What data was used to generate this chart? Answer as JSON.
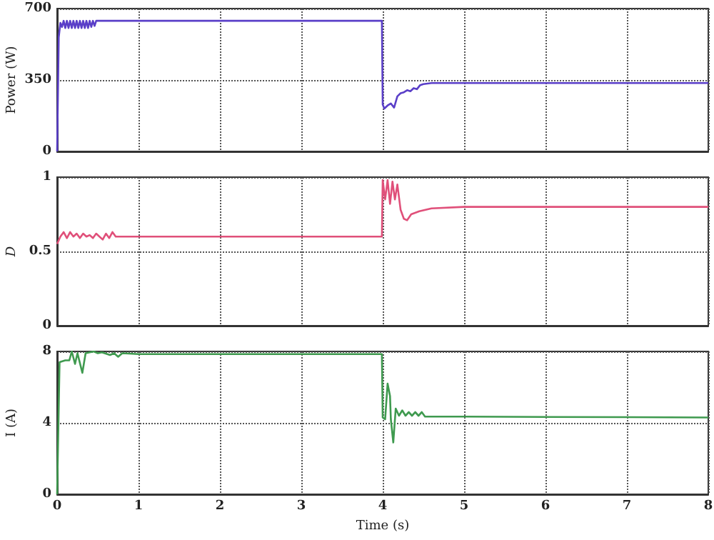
{
  "chart_data": [
    {
      "type": "line",
      "ylabel": "Power (W)",
      "xlim": [
        0,
        8
      ],
      "xticks": [
        0,
        1,
        2,
        3,
        4,
        5,
        6,
        7,
        8
      ],
      "ylim": [
        0,
        700
      ],
      "yticks": [
        0,
        350,
        700
      ],
      "grid": true,
      "tick_labels": "y",
      "series": [
        {
          "color": "#5a3fc8",
          "x": [
            0,
            0.02,
            0.04,
            0.06,
            0.08,
            0.1,
            0.12,
            0.14,
            0.16,
            0.18,
            0.2,
            0.22,
            0.24,
            0.26,
            0.28,
            0.3,
            0.32,
            0.34,
            0.36,
            0.38,
            0.4,
            0.42,
            0.44,
            0.46,
            0.48,
            0.5,
            1,
            2,
            3,
            3.99,
            4.0,
            4.02,
            4.06,
            4.1,
            4.14,
            4.18,
            4.22,
            4.26,
            4.3,
            4.34,
            4.38,
            4.42,
            4.46,
            4.5,
            4.6,
            5,
            6,
            7,
            8
          ],
          "values": [
            0,
            560,
            630,
            610,
            640,
            605,
            640,
            605,
            640,
            605,
            640,
            605,
            640,
            605,
            640,
            605,
            640,
            605,
            640,
            605,
            640,
            610,
            640,
            615,
            640,
            640,
            640,
            640,
            640,
            640,
            230,
            210,
            225,
            235,
            215,
            270,
            285,
            290,
            300,
            295,
            310,
            305,
            325,
            330,
            335,
            335,
            335,
            335,
            335
          ]
        }
      ]
    },
    {
      "type": "line",
      "ylabel": "D",
      "xlim": [
        0,
        8
      ],
      "xticks": [
        0,
        1,
        2,
        3,
        4,
        5,
        6,
        7,
        8
      ],
      "ylim": [
        0,
        1
      ],
      "yticks": [
        0,
        0.5,
        1
      ],
      "grid": true,
      "tick_labels": "y",
      "series": [
        {
          "color": "#e0507a",
          "x": [
            0,
            0.04,
            0.08,
            0.12,
            0.16,
            0.2,
            0.24,
            0.28,
            0.32,
            0.36,
            0.4,
            0.44,
            0.48,
            0.52,
            0.56,
            0.6,
            0.64,
            0.68,
            0.72,
            1,
            2,
            3,
            3.99,
            4.0,
            4.03,
            4.06,
            4.09,
            4.12,
            4.15,
            4.18,
            4.22,
            4.26,
            4.3,
            4.35,
            4.45,
            4.6,
            5,
            6,
            7,
            8
          ],
          "values": [
            0.55,
            0.6,
            0.63,
            0.59,
            0.63,
            0.6,
            0.62,
            0.59,
            0.62,
            0.6,
            0.61,
            0.59,
            0.62,
            0.6,
            0.58,
            0.62,
            0.59,
            0.63,
            0.6,
            0.6,
            0.6,
            0.6,
            0.6,
            0.98,
            0.85,
            0.98,
            0.82,
            0.97,
            0.85,
            0.95,
            0.78,
            0.72,
            0.71,
            0.75,
            0.77,
            0.79,
            0.8,
            0.8,
            0.8,
            0.8
          ]
        }
      ]
    },
    {
      "type": "line",
      "ylabel": "I (A)",
      "xlabel": "Time (s)",
      "xlim": [
        0,
        8
      ],
      "xticks": [
        0,
        1,
        2,
        3,
        4,
        5,
        6,
        7,
        8
      ],
      "ylim": [
        0,
        8
      ],
      "yticks": [
        0,
        4,
        8
      ],
      "grid": true,
      "series": [
        {
          "color": "#3f9a4f",
          "x": [
            0,
            0.03,
            0.1,
            0.15,
            0.18,
            0.22,
            0.25,
            0.31,
            0.35,
            0.45,
            0.5,
            0.55,
            0.65,
            0.7,
            0.75,
            0.8,
            1,
            2,
            3,
            3.99,
            4.0,
            4.03,
            4.06,
            4.09,
            4.1,
            4.13,
            4.16,
            4.2,
            4.24,
            4.28,
            4.32,
            4.36,
            4.4,
            4.44,
            4.48,
            4.52,
            5,
            6,
            7,
            8
          ],
          "values": [
            0,
            7.4,
            7.5,
            7.5,
            8,
            7.3,
            7.9,
            6.8,
            7.9,
            8,
            7.9,
            7.95,
            7.8,
            7.9,
            7.7,
            7.9,
            7.85,
            7.85,
            7.85,
            7.85,
            4.3,
            4.2,
            6.2,
            5.5,
            4.2,
            2.9,
            4.8,
            4.4,
            4.7,
            4.4,
            4.6,
            4.4,
            4.6,
            4.4,
            4.6,
            4.35,
            4.35,
            4.33,
            4.32,
            4.3
          ]
        }
      ]
    }
  ]
}
